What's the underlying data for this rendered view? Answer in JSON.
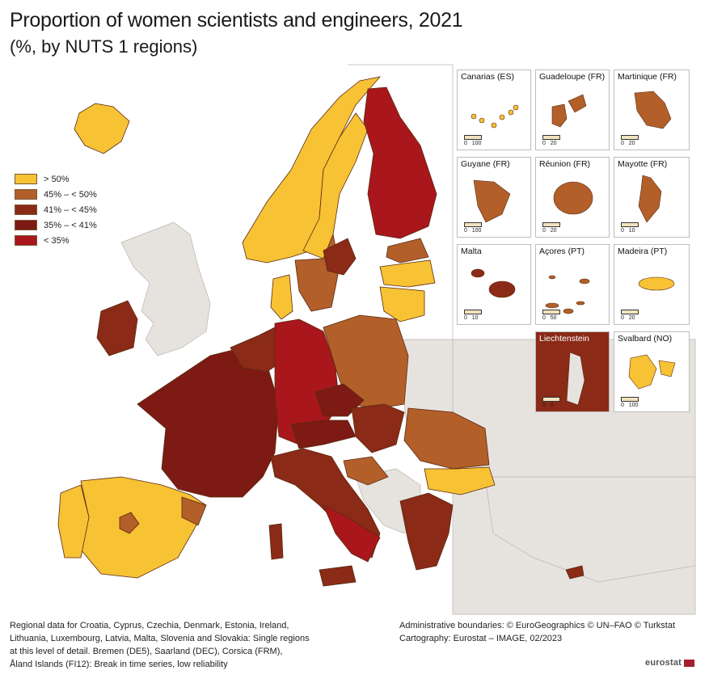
{
  "title": "Proportion of women scientists and engineers, 2021",
  "subtitle": "(%, by NUTS 1 regions)",
  "legend": [
    {
      "label": "> 50%",
      "color": "#f7c234"
    },
    {
      "label": "45% – < 50%",
      "color": "#b25f2a"
    },
    {
      "label": "41% – < 45%",
      "color": "#8a2a17"
    },
    {
      "label": "35% – < 41%",
      "color": "#7d1a14"
    },
    {
      "label": "< 35%",
      "color": "#a9161b"
    }
  ],
  "insets": [
    {
      "name": "Canarias (ES)",
      "scale": [
        "0",
        "100"
      ]
    },
    {
      "name": "Guadeloupe (FR)",
      "scale": [
        "0",
        "20"
      ]
    },
    {
      "name": "Martinique (FR)",
      "scale": [
        "0",
        "20"
      ]
    },
    {
      "name": "Guyane (FR)",
      "scale": [
        "0",
        "100"
      ]
    },
    {
      "name": "Réunion (FR)",
      "scale": [
        "0",
        "20"
      ]
    },
    {
      "name": "Mayotte (FR)",
      "scale": [
        "0",
        "10"
      ]
    },
    {
      "name": "Malta",
      "scale": [
        "0",
        "10"
      ]
    },
    {
      "name": "Açores (PT)",
      "scale": [
        "0",
        "50"
      ]
    },
    {
      "name": "Madeira (PT)",
      "scale": [
        "0",
        "20"
      ]
    },
    {
      "name": "Liechtenstein",
      "scale": [
        "0",
        "5"
      ]
    },
    {
      "name": "Svalbard (NO)",
      "scale": [
        "0",
        "100"
      ]
    }
  ],
  "footnote": {
    "left": [
      "Regional data for Croatia, Cyprus, Czechia, Denmark, Estonia, Ireland,",
      "Lithuania, Luxembourg, Latvia, Malta, Slovenia and Slovakia: Single regions",
      "at this level of detail. Bremen (DE5), Saarland (DEC), Corsica (FRM),",
      "Åland Islands (FI12): Break in time series, low reliability"
    ],
    "right": [
      "Administrative boundaries: © EuroGeographics © UN–FAO © Turkstat",
      "Cartography: Eurostat – IMAGE, 02/2023"
    ]
  },
  "logo": "eurostat",
  "colors": {
    "sea": "#ffffff",
    "non_eu_land": "#e6e3df",
    "border": "#6b3a1e"
  },
  "regions": [
    {
      "name": "Iceland",
      "cls": "y"
    },
    {
      "name": "Norway",
      "cls": "y"
    },
    {
      "name": "Sweden",
      "cls": "y"
    },
    {
      "name": "Sweden south",
      "cls": "o"
    },
    {
      "name": "Finland",
      "cls": "r"
    },
    {
      "name": "Estonia",
      "cls": "o"
    },
    {
      "name": "Latvia",
      "cls": "y"
    },
    {
      "name": "Lithuania",
      "cls": "y"
    },
    {
      "name": "Denmark",
      "cls": "y"
    },
    {
      "name": "Ireland",
      "cls": "b"
    },
    {
      "name": "France",
      "cls": "b"
    },
    {
      "name": "Spain",
      "cls": "y"
    },
    {
      "name": "Portugal",
      "cls": "y"
    },
    {
      "name": "Germany",
      "cls": "r"
    },
    {
      "name": "Poland",
      "cls": "o"
    },
    {
      "name": "Italy",
      "cls": "b"
    },
    {
      "name": "Greece",
      "cls": "b"
    },
    {
      "name": "Romania",
      "cls": "o"
    },
    {
      "name": "Bulgaria",
      "cls": "y"
    },
    {
      "name": "Cyprus",
      "cls": "b"
    }
  ]
}
